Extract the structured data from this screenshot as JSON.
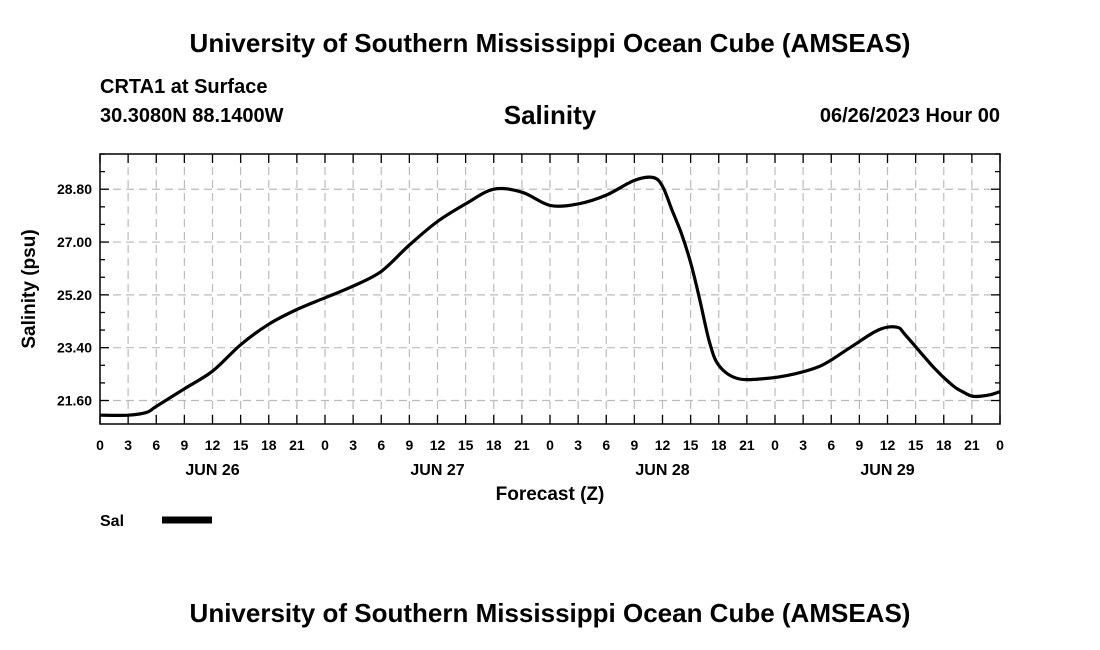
{
  "header": {
    "title": "University of Southern Mississippi Ocean Cube (AMSEAS)",
    "station": "CRTA1 at Surface",
    "coords": "30.3080N  88.1400W",
    "chart_title": "Salinity",
    "forecast_date": "06/26/2023 Hour 00"
  },
  "footer": {
    "title": "University of Southern Mississippi Ocean Cube (AMSEAS)"
  },
  "chart_data": {
    "type": "line",
    "title": "Salinity",
    "xlabel": "Forecast (Z)",
    "ylabel": "Salinity (psu)",
    "xlim": [
      0,
      96
    ],
    "ylim": [
      20.8,
      30.0
    ],
    "y_ticks": [
      21.6,
      23.4,
      25.2,
      27.0,
      28.8
    ],
    "y_tick_labels": [
      "21.60",
      "23.40",
      "25.20",
      "27.00",
      "28.80"
    ],
    "x_tick_labels": [
      "0",
      "3",
      "6",
      "9",
      "12",
      "15",
      "18",
      "21",
      "0",
      "3",
      "6",
      "9",
      "12",
      "15",
      "18",
      "21",
      "0",
      "3",
      "6",
      "9",
      "12",
      "15",
      "18",
      "21",
      "0",
      "3",
      "6",
      "9",
      "12",
      "15",
      "18",
      "21",
      "0"
    ],
    "day_labels": [
      {
        "label": "JUN 26",
        "hour": 12
      },
      {
        "label": "JUN 27",
        "hour": 36
      },
      {
        "label": "JUN 28",
        "hour": 60
      },
      {
        "label": "JUN 29",
        "hour": 84
      }
    ],
    "grid": true,
    "legend": "bottom-left",
    "series": [
      {
        "name": "Sal",
        "x": [
          0,
          3,
          5,
          6,
          9,
          12,
          15,
          18,
          21,
          24,
          27,
          30,
          33,
          36,
          39,
          42,
          45,
          48,
          51,
          54,
          57,
          59,
          60,
          61,
          62,
          63,
          64,
          65,
          66,
          68,
          71,
          74,
          77,
          80,
          83,
          85,
          86,
          89,
          91,
          92,
          93,
          94,
          95,
          96
        ],
        "values": [
          21.1,
          21.1,
          21.2,
          21.4,
          22.0,
          22.6,
          23.5,
          24.2,
          24.7,
          25.1,
          25.5,
          26.0,
          26.9,
          27.7,
          28.3,
          28.8,
          28.7,
          28.25,
          28.3,
          28.6,
          29.1,
          29.2,
          28.9,
          28.1,
          27.3,
          26.3,
          25.0,
          23.6,
          22.8,
          22.35,
          22.35,
          22.5,
          22.8,
          23.4,
          24.0,
          24.1,
          23.8,
          22.7,
          22.1,
          21.9,
          21.75,
          21.75,
          21.8,
          21.9
        ]
      }
    ]
  }
}
